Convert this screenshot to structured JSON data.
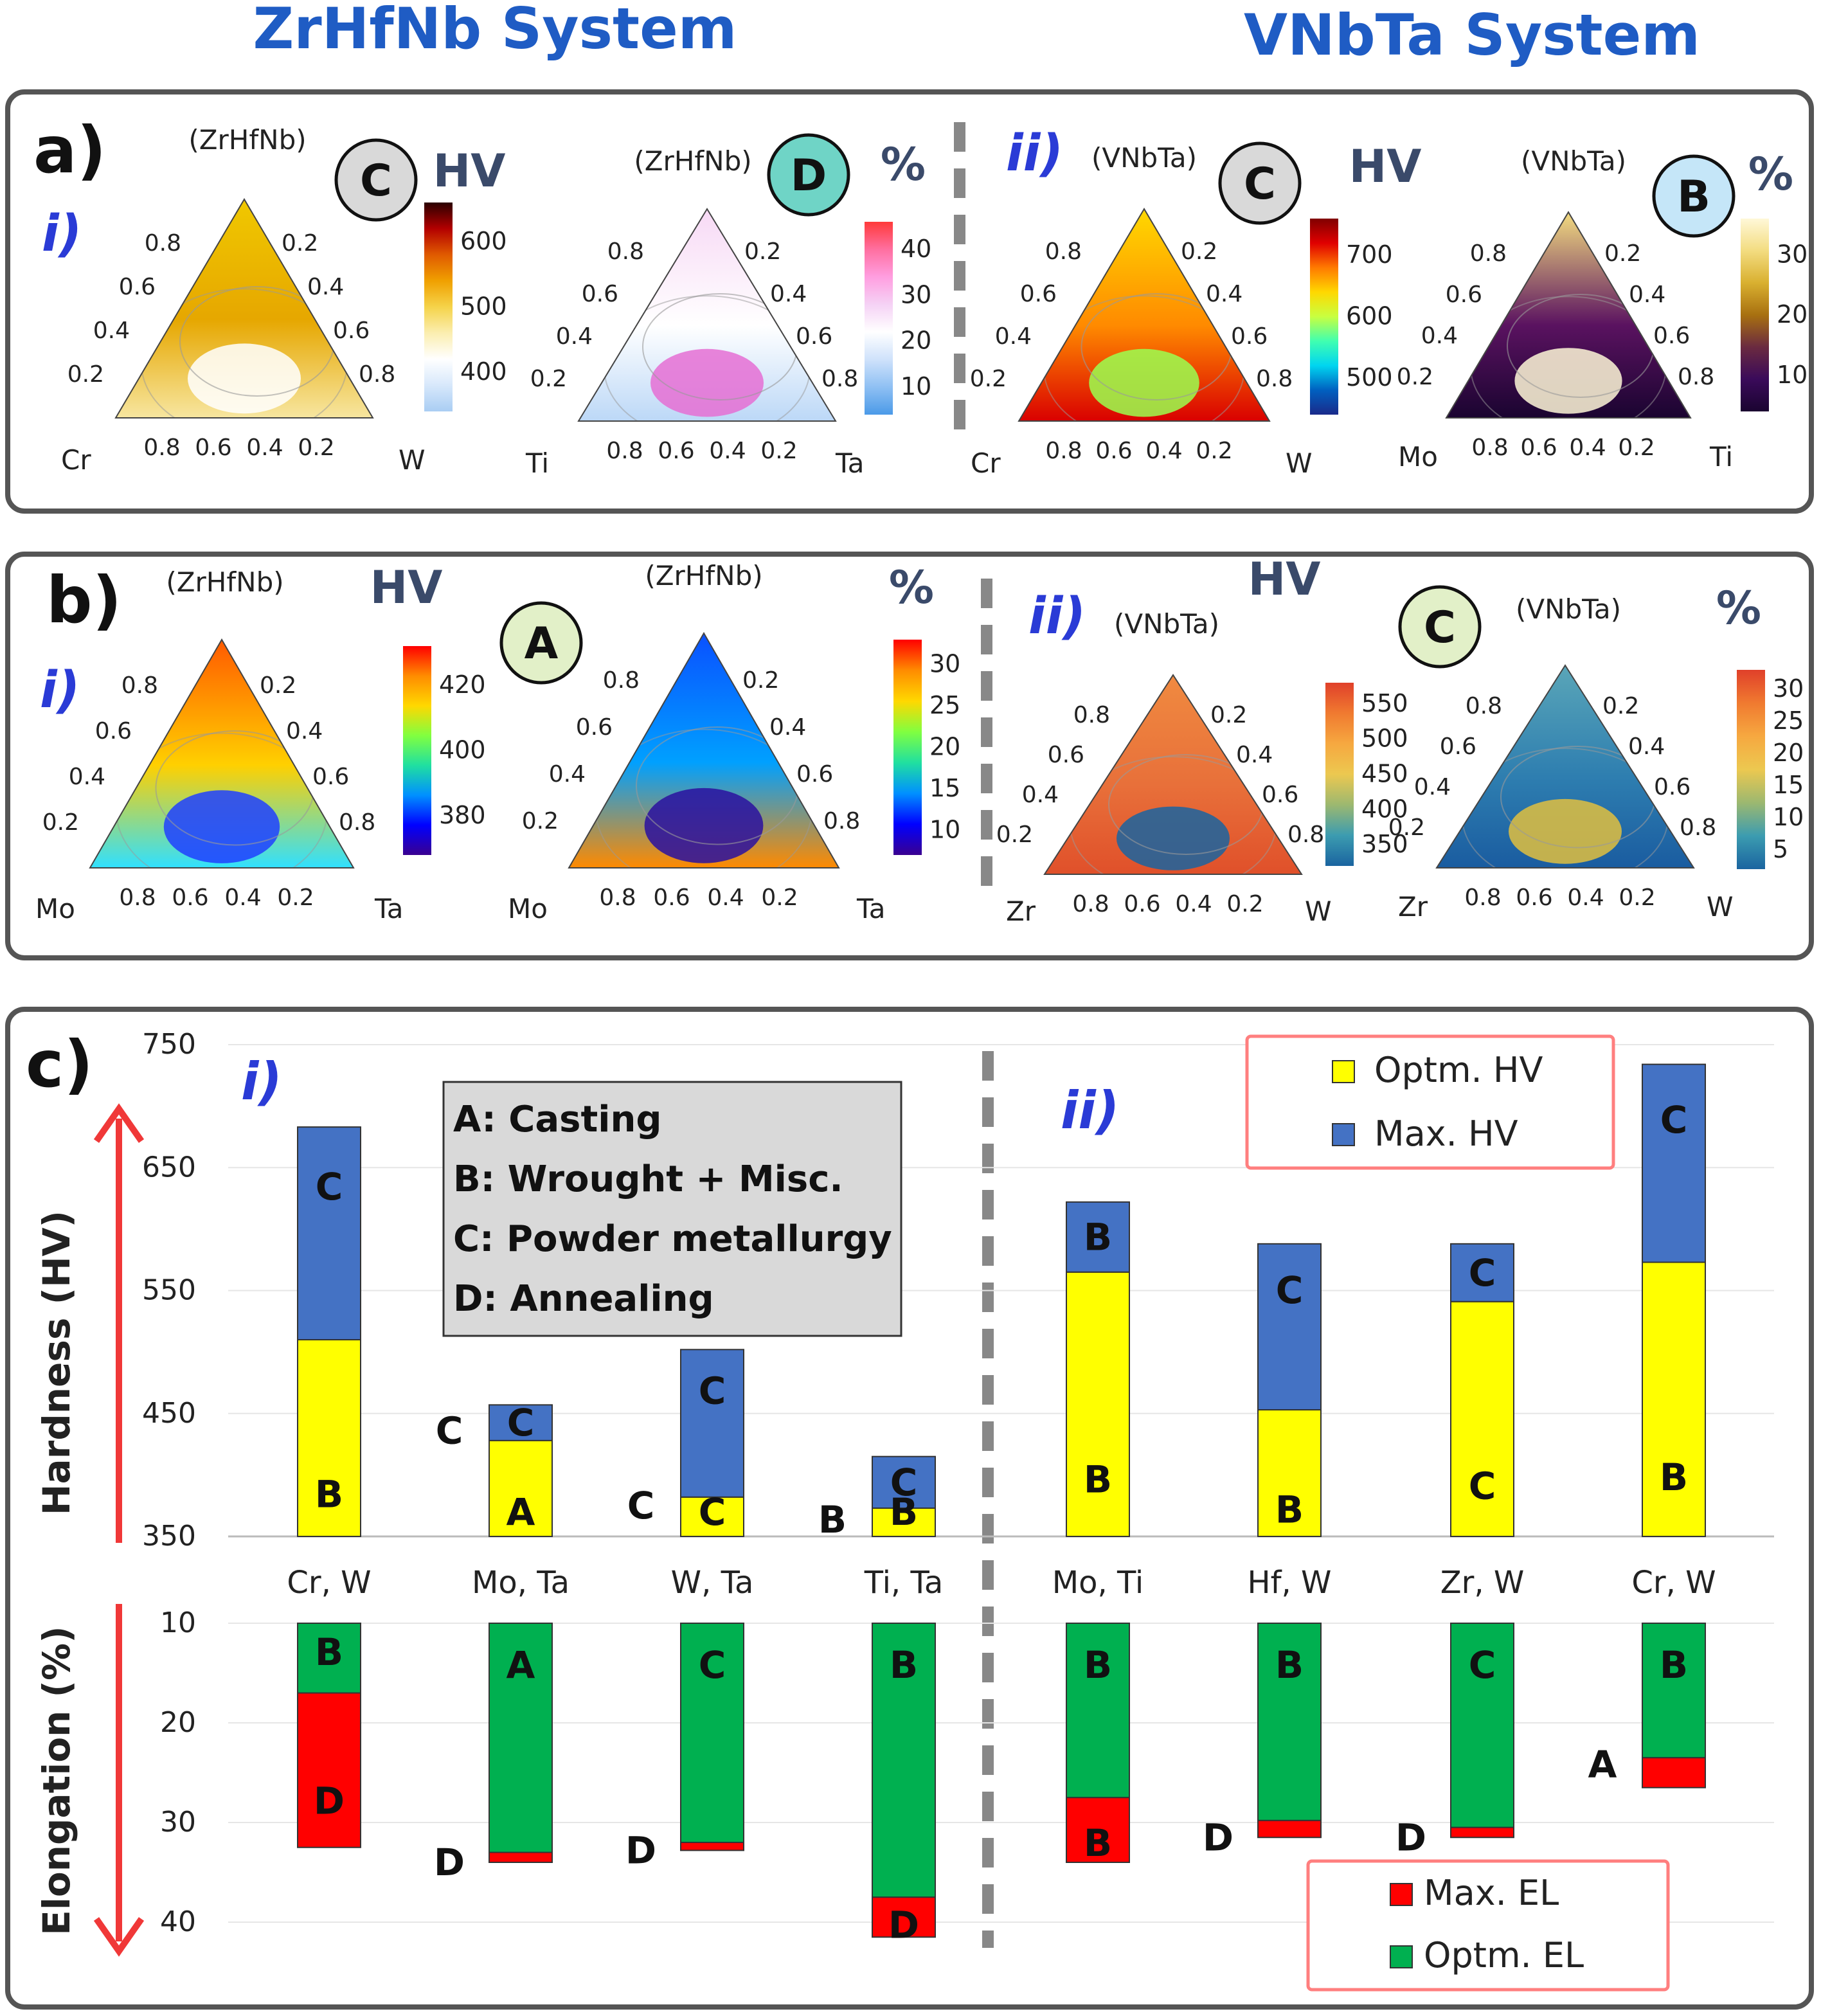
{
  "header": {
    "left_title": "ZrHfNb System",
    "right_title": "VNbTa System"
  },
  "colors": {
    "title_blue": "#1f5cc4",
    "roman_blue": "#2a3bd6",
    "optm_hv": "#ffff00",
    "max_hv": "#4472c4",
    "max_el": "#ff0000",
    "optm_el": "#00b050",
    "legend_border": "#ff7f7f",
    "panel_border": "#555555"
  },
  "panels": {
    "a": {
      "label": "a)"
    },
    "b": {
      "label": "b)"
    },
    "c": {
      "label": "c)"
    }
  },
  "ternaries": [
    {
      "id": "a1",
      "system": "(ZrHfNb)",
      "left": "Cr",
      "right": "W",
      "badge": "C",
      "badge_color": "#d9d9d9",
      "unit": "HV",
      "cbar_ticks": [
        "600",
        "500",
        "400"
      ],
      "cbar": [
        "#2b0000",
        "#b30000",
        "#e05a00",
        "#f0a000",
        "#f5d34a",
        "#fbeeb0",
        "#ffffff",
        "#d7e8fb",
        "#a9cdf3"
      ],
      "fill": [
        "#f0c800",
        "#e6a700",
        "#f7e6a0",
        "#ffffff"
      ],
      "roman": "i)"
    },
    {
      "id": "a2",
      "system": "(ZrHfNb)",
      "left": "Ti",
      "right": "Ta",
      "badge": "D",
      "badge_color": "#6fd4c6",
      "unit": "%",
      "cbar_ticks": [
        "40",
        "30",
        "20",
        "10"
      ],
      "cbar": [
        "#ff3a3a",
        "#ff6fa0",
        "#ff9ee0",
        "#f5d2f5",
        "#ffffff",
        "#cfe2fb",
        "#8fc0f3",
        "#4b9ae8"
      ],
      "fill": [
        "#f7d9f5",
        "#ffffff",
        "#bcd8f7",
        "#e56fd4"
      ]
    },
    {
      "id": "a3",
      "system": "(VNbTa)",
      "left": "Cr",
      "right": "W",
      "badge": "C",
      "badge_color": "#d9d9d9",
      "unit": "HV",
      "cbar_ticks": [
        "700",
        "600",
        "500"
      ],
      "cbar": [
        "#800000",
        "#e00000",
        "#ff7a00",
        "#ffd800",
        "#c8ff40",
        "#40ffb0",
        "#00d5f0",
        "#0060c0",
        "#1a2a8a"
      ],
      "fill": [
        "#ffd800",
        "#ff8a00",
        "#d90000",
        "#9aff50"
      ],
      "roman": "ii)"
    },
    {
      "id": "a4",
      "system": "(VNbTa)",
      "left": "Mo",
      "right": "Ti",
      "badge": "B",
      "badge_color": "#c5e6f8",
      "unit": "%",
      "cbar_ticks": [
        "30",
        "20",
        "10"
      ],
      "cbar": [
        "#fff8d8",
        "#f3dc80",
        "#d9b030",
        "#a87010",
        "#6a2a40",
        "#3a0a5a",
        "#1a0430"
      ],
      "fill": [
        "#f3dc80",
        "#5a1260",
        "#1a0430",
        "#fff8d8"
      ]
    },
    {
      "id": "b1",
      "system": "(ZrHfNb)",
      "left": "Mo",
      "right": "Ta",
      "badge": "",
      "badge_color": "",
      "unit": "HV",
      "cbar_ticks": [
        "420",
        "400",
        "380"
      ],
      "cbar": [
        "#ff0000",
        "#ff8c00",
        "#ffd800",
        "#80ff40",
        "#20e0a0",
        "#0090ff",
        "#0000ff",
        "#3a0090"
      ],
      "fill": [
        "#ff5a00",
        "#ffd000",
        "#30e0ff",
        "#2040ff"
      ],
      "roman": "i)"
    },
    {
      "id": "b2",
      "system": "(ZrHfNb)",
      "left": "Mo",
      "right": "Ta",
      "badge": "A",
      "badge_color": "#e2f0c8",
      "unit": "%",
      "cbar_ticks": [
        "30",
        "25",
        "20",
        "15",
        "10"
      ],
      "cbar": [
        "#ff0000",
        "#ff8c00",
        "#ffd800",
        "#80ff40",
        "#20e0a0",
        "#0090ff",
        "#0000ff",
        "#3a0090"
      ],
      "fill": [
        "#0a50ff",
        "#00a0ff",
        "#ff8a00",
        "#2a10a0"
      ]
    },
    {
      "id": "b3",
      "system": "(VNbTa)",
      "left": "Zr",
      "right": "W",
      "badge": "",
      "badge_color": "",
      "unit": "HV",
      "cbar_ticks": [
        "550",
        "500",
        "450",
        "400",
        "350"
      ],
      "cbar": [
        "#e0402a",
        "#f07a30",
        "#f6a840",
        "#ecc850",
        "#9cb870",
        "#3c9cb0",
        "#1a64a0"
      ],
      "fill": [
        "#f08a40",
        "#e8703a",
        "#e0502a",
        "#1a64a0"
      ],
      "roman": "ii)"
    },
    {
      "id": "b4",
      "system": "(VNbTa)",
      "left": "Zr",
      "right": "W",
      "badge": "C",
      "badge_color": "#e2f0c8",
      "unit": "%",
      "cbar_ticks": [
        "30",
        "25",
        "20",
        "15",
        "10",
        "5"
      ],
      "cbar": [
        "#e0402a",
        "#f07a30",
        "#f6a840",
        "#ecc850",
        "#9cb870",
        "#3c9cb0",
        "#1a64a0"
      ],
      "fill": [
        "#5aa6b8",
        "#2e7eb0",
        "#1a5ca0",
        "#e0c040"
      ]
    }
  ],
  "tern_ticks": [
    "0.8",
    "0.6",
    "0.4",
    "0.2"
  ],
  "chart_data": {
    "type": "bar",
    "stacked": true,
    "groups": [
      {
        "label": "i)",
        "categories": [
          "Cr, W",
          "Mo, Ta",
          "W, Ta",
          "Ti, Ta"
        ]
      },
      {
        "label": "ii)",
        "categories": [
          "Mo, Ti",
          "Hf, W",
          "Zr, W",
          "Cr, W"
        ]
      }
    ],
    "categories": [
      "Cr, W",
      "Mo, Ta",
      "W, Ta",
      "Ti, Ta",
      "Mo, Ti",
      "Hf, W",
      "Zr, W",
      "Cr, W"
    ],
    "hardness": {
      "ylabel": "Hardness (HV)",
      "yticks": [
        "750",
        "650",
        "550",
        "450",
        "350"
      ],
      "ylim": [
        350,
        750
      ],
      "series": [
        {
          "name": "Optm. HV",
          "values": [
            510,
            428,
            382,
            373,
            565,
            453,
            541,
            573
          ],
          "labels": [
            "B",
            "A",
            "C",
            "B",
            "B",
            "B",
            "C",
            "B"
          ]
        },
        {
          "name": "Max. HV",
          "values": [
            683,
            457,
            502,
            415,
            622,
            588,
            588,
            734
          ],
          "labels": [
            "C",
            "C",
            "C",
            "C",
            "B",
            "C",
            "C",
            "C"
          ]
        }
      ],
      "side_labels": [
        "",
        "C",
        "C",
        "B",
        "",
        "",
        "",
        ""
      ]
    },
    "elongation": {
      "ylabel": "Elongation (%)",
      "yticks": [
        "10",
        "20",
        "30",
        "40"
      ],
      "ylim": [
        10,
        40
      ],
      "series": [
        {
          "name": "Optm. EL",
          "values": [
            17,
            33,
            32,
            37.5,
            27.5,
            29.8,
            30.5,
            23.5
          ],
          "labels": [
            "B",
            "A",
            "C",
            "B",
            "B",
            "B",
            "C",
            "B"
          ]
        },
        {
          "name": "Max. EL",
          "values": [
            32.5,
            34,
            32.8,
            41.5,
            34,
            31.5,
            31.5,
            26.5
          ],
          "labels": [
            "D",
            "",
            "",
            "D",
            "B",
            "",
            "",
            ""
          ]
        }
      ],
      "side_labels": [
        "",
        "D",
        "D",
        "",
        "",
        "D",
        "D",
        "A"
      ]
    },
    "legend_hv": [
      "Optm. HV",
      "Max. HV"
    ],
    "legend_el": [
      "Max. EL",
      "Optm. EL"
    ],
    "method_box": [
      "A: Casting",
      "B: Wrought + Misc.",
      "C: Powder metallurgy",
      "D: Annealing"
    ]
  }
}
